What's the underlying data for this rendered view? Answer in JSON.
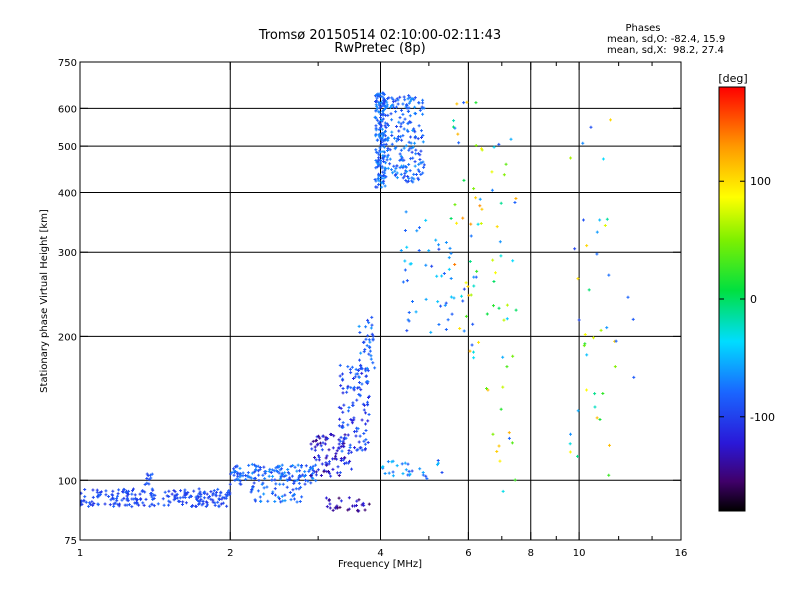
{
  "chart_data": {
    "type": "scatter",
    "title": "Tromsø 20150514 02:10:00-02:11:43",
    "subtitle": "RwPretec (8p)",
    "xlabel": "Frequency [MHz]",
    "ylabel": "Stationary phase Virtual Height [km]",
    "x_scale": "log",
    "y_scale": "log",
    "xlim": [
      1,
      16
    ],
    "ylim": [
      75,
      750
    ],
    "grid": true,
    "x_ticks": [
      1,
      2,
      4,
      6,
      8,
      10,
      16
    ],
    "x_tick_labels": [
      "1",
      "2",
      "4",
      "6",
      "8",
      "10",
      "16"
    ],
    "x_gridlines": [
      2,
      4,
      6,
      8,
      10
    ],
    "y_ticks": [
      75,
      100,
      200,
      300,
      400,
      500,
      600,
      750
    ],
    "y_tick_labels": [
      "75",
      "100",
      "200",
      "300",
      "400",
      "500",
      "600",
      "750"
    ],
    "y_gridlines": [
      100,
      200,
      300,
      400,
      500,
      600
    ],
    "legend": {
      "heading": "Phases",
      "lines": [
        "mean, sd,O: -82.4, 15.9",
        "mean, sd,X:  98.2, 27.4"
      ]
    },
    "colorbar": {
      "label": "[deg]",
      "range": [
        -180,
        180
      ],
      "ticks": [
        100,
        0,
        -100
      ],
      "tick_labels": [
        "100",
        "0",
        "-100"
      ]
    },
    "clusters": [
      {
        "f": [
          1.0,
          2.0
        ],
        "h": [
          88,
          96
        ],
        "phase": [
          -110,
          -80
        ],
        "n": 230
      },
      {
        "f": [
          1.35,
          1.4
        ],
        "h": [
          98,
          104
        ],
        "phase": [
          -100,
          -80
        ],
        "n": 10
      },
      {
        "f": [
          2.0,
          3.0
        ],
        "h": [
          98,
          108
        ],
        "phase": [
          -100,
          -60
        ],
        "n": 140
      },
      {
        "f": [
          2.2,
          2.8
        ],
        "h": [
          90,
          99
        ],
        "phase": [
          -100,
          -60
        ],
        "n": 45
      },
      {
        "f": [
          2.9,
          3.5
        ],
        "h": [
          102,
          125
        ],
        "phase": [
          -150,
          -90
        ],
        "n": 90
      },
      {
        "f": [
          3.3,
          3.8
        ],
        "h": [
          115,
          175
        ],
        "phase": [
          -120,
          -70
        ],
        "n": 110
      },
      {
        "f": [
          3.6,
          3.9
        ],
        "h": [
          160,
          220
        ],
        "phase": [
          -100,
          -60
        ],
        "n": 40
      },
      {
        "f": [
          3.1,
          3.8
        ],
        "h": [
          86,
          92
        ],
        "phase": [
          -160,
          -110
        ],
        "n": 30
      },
      {
        "f": [
          3.9,
          4.1
        ],
        "h": [
          410,
          650
        ],
        "phase": [
          -100,
          -60
        ],
        "n": 160
      },
      {
        "f": [
          4.0,
          4.9
        ],
        "h": [
          420,
          640
        ],
        "phase": [
          -100,
          -60
        ],
        "n": 210
      },
      {
        "f": [
          4.0,
          5.4
        ],
        "h": [
          100,
          110
        ],
        "phase": [
          -100,
          -40
        ],
        "n": 30
      },
      {
        "f": [
          4.4,
          5.6
        ],
        "h": [
          200,
          370
        ],
        "phase": [
          -100,
          -40
        ],
        "n": 45
      },
      {
        "f": [
          5.5,
          6.4
        ],
        "h": [
          180,
          620
        ],
        "phase": [
          -100,
          140
        ],
        "n": 50
      },
      {
        "f": [
          6.5,
          7.5
        ],
        "h": [
          90,
          520
        ],
        "phase": [
          -100,
          130
        ],
        "n": 40
      },
      {
        "f": [
          9.5,
          12.0
        ],
        "h": [
          100,
          620
        ],
        "phase": [
          -100,
          120
        ],
        "n": 40
      },
      {
        "f": [
          12.5,
          13.0
        ],
        "h": [
          145,
          260
        ],
        "phase": [
          -90,
          -70
        ],
        "n": 3
      }
    ]
  }
}
